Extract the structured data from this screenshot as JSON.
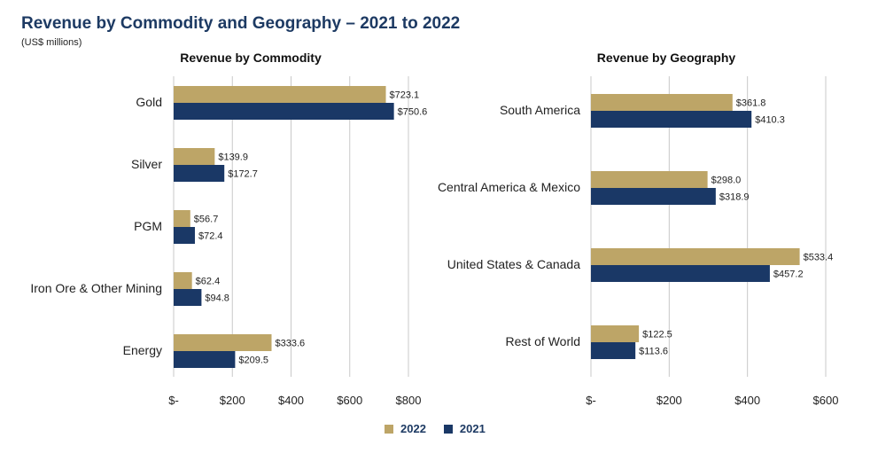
{
  "title": "Revenue by Commodity and Geography – 2021 to 2022",
  "subtitle": "(US$ millions)",
  "colors": {
    "y2022": "#bda567",
    "y2021": "#1a3866",
    "grid": "#c8c8c8",
    "text": "#222222"
  },
  "legend": [
    {
      "label": "2022",
      "color": "#bda567"
    },
    {
      "label": "2021",
      "color": "#1a3866"
    }
  ],
  "chart_data": [
    {
      "type": "bar",
      "orientation": "horizontal",
      "title": "Revenue by Commodity",
      "categories": [
        "Gold",
        "Silver",
        "PGM",
        "Iron Ore & Other Mining",
        "Energy"
      ],
      "series": [
        {
          "name": "2022",
          "values": [
            723.1,
            139.9,
            56.7,
            62.4,
            333.6
          ],
          "labels": [
            "$723.1",
            "$139.9",
            "$56.7",
            "$62.4",
            "$333.6"
          ]
        },
        {
          "name": "2021",
          "values": [
            750.6,
            172.7,
            72.4,
            94.8,
            209.5
          ],
          "labels": [
            "$750.6",
            "$172.7",
            "$72.4",
            "$94.8",
            "$209.5"
          ]
        }
      ],
      "xlim": [
        0,
        800
      ],
      "ticks": [
        0,
        200,
        400,
        600,
        800
      ],
      "tick_labels": [
        "$-",
        "$200",
        "$400",
        "$600",
        "$800"
      ],
      "grid": true
    },
    {
      "type": "bar",
      "orientation": "horizontal",
      "title": "Revenue by Geography",
      "categories": [
        "South America",
        "Central America & Mexico",
        "United States & Canada",
        "Rest of World"
      ],
      "series": [
        {
          "name": "2022",
          "values": [
            361.8,
            298.0,
            533.4,
            122.5
          ],
          "labels": [
            "$361.8",
            "$298.0",
            "$533.4",
            "$122.5"
          ]
        },
        {
          "name": "2021",
          "values": [
            410.3,
            318.9,
            457.2,
            113.6
          ],
          "labels": [
            "$410.3",
            "$318.9",
            "$457.2",
            "$113.6"
          ]
        }
      ],
      "xlim": [
        0,
        600
      ],
      "ticks": [
        0,
        200,
        400,
        600
      ],
      "tick_labels": [
        "$-",
        "$200",
        "$400",
        "$600"
      ],
      "grid": true
    }
  ]
}
